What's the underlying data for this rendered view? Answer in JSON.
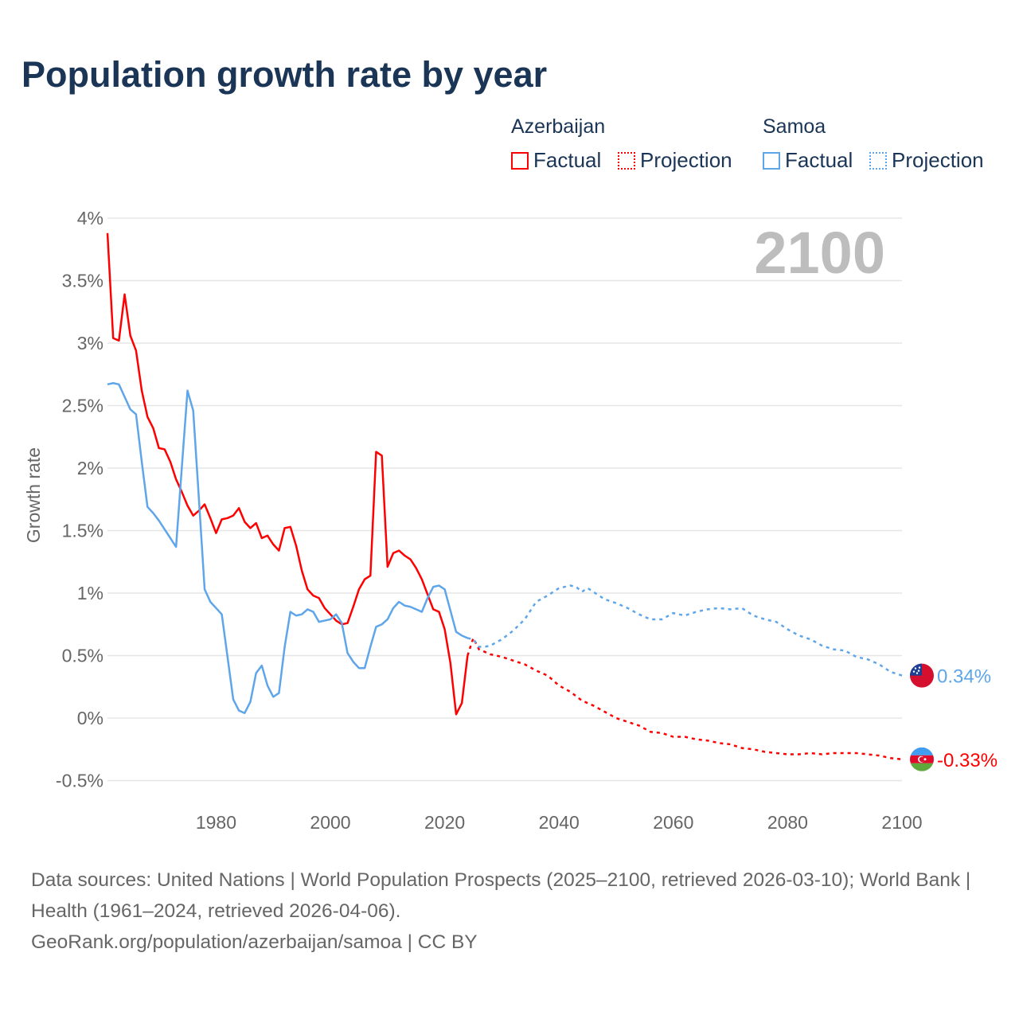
{
  "title": "Population growth rate by year",
  "legend": {
    "groups": [
      {
        "country": "Azerbaijan",
        "factual": "Factual",
        "projection": "Projection",
        "color": "#ff0000"
      },
      {
        "country": "Samoa",
        "factual": "Factual",
        "projection": "Projection",
        "color": "#5ea6e9"
      }
    ]
  },
  "chart_data": {
    "type": "line",
    "title": "Population growth rate by year",
    "xlabel": "",
    "ylabel": "Growth rate",
    "xlim": [
      1961,
      2100
    ],
    "ylim": [
      -0.5,
      4
    ],
    "grid": true,
    "year_watermark": "2100",
    "x_ticks": [
      1980,
      2000,
      2020,
      2040,
      2060,
      2080,
      2100
    ],
    "x_tick_labels": [
      "1980",
      "2000",
      "2020",
      "2040",
      "2060",
      "2080",
      "2100"
    ],
    "y_ticks": [
      -0.5,
      0,
      0.5,
      1,
      1.5,
      2,
      2.5,
      3,
      3.5,
      4
    ],
    "y_tick_labels": [
      "-0.5%",
      "0%",
      "0.5%",
      "1%",
      "1.5%",
      "2%",
      "2.5%",
      "3%",
      "3.5%",
      "4%"
    ],
    "series": [
      {
        "name": "Azerbaijan",
        "color": "#ff0000",
        "end_label": "-0.33%",
        "factual_start_year": 1961,
        "factual": [
          3.88,
          3.04,
          3.02,
          3.39,
          3.06,
          2.94,
          2.62,
          2.41,
          2.32,
          2.16,
          2.15,
          2.05,
          1.91,
          1.81,
          1.7,
          1.62,
          1.66,
          1.71,
          1.6,
          1.48,
          1.59,
          1.6,
          1.62,
          1.68,
          1.57,
          1.52,
          1.56,
          1.44,
          1.46,
          1.39,
          1.34,
          1.52,
          1.53,
          1.38,
          1.18,
          1.03,
          0.98,
          0.96,
          0.88,
          0.83,
          0.78,
          0.75,
          0.76,
          0.89,
          1.03,
          1.11,
          1.14,
          2.13,
          2.1,
          1.21,
          1.32,
          1.34,
          1.3,
          1.27,
          1.2,
          1.11,
          0.99,
          0.87,
          0.85,
          0.71,
          0.44,
          0.03,
          0.12,
          0.5
        ],
        "projection": [
          [
            2024,
            0.5
          ],
          [
            2025,
            0.64
          ],
          [
            2026,
            0.55
          ],
          [
            2028,
            0.51
          ],
          [
            2030,
            0.49
          ],
          [
            2032,
            0.46
          ],
          [
            2034,
            0.43
          ],
          [
            2036,
            0.38
          ],
          [
            2038,
            0.34
          ],
          [
            2040,
            0.26
          ],
          [
            2042,
            0.21
          ],
          [
            2044,
            0.14
          ],
          [
            2046,
            0.1
          ],
          [
            2048,
            0.05
          ],
          [
            2050,
            0.0
          ],
          [
            2052,
            -0.03
          ],
          [
            2054,
            -0.06
          ],
          [
            2056,
            -0.11
          ],
          [
            2058,
            -0.12
          ],
          [
            2060,
            -0.15
          ],
          [
            2062,
            -0.15
          ],
          [
            2064,
            -0.17
          ],
          [
            2066,
            -0.18
          ],
          [
            2068,
            -0.2
          ],
          [
            2070,
            -0.21
          ],
          [
            2072,
            -0.24
          ],
          [
            2074,
            -0.25
          ],
          [
            2076,
            -0.27
          ],
          [
            2078,
            -0.28
          ],
          [
            2080,
            -0.29
          ],
          [
            2082,
            -0.29
          ],
          [
            2084,
            -0.28
          ],
          [
            2086,
            -0.29
          ],
          [
            2088,
            -0.28
          ],
          [
            2090,
            -0.28
          ],
          [
            2092,
            -0.28
          ],
          [
            2094,
            -0.29
          ],
          [
            2096,
            -0.3
          ],
          [
            2098,
            -0.32
          ],
          [
            2100,
            -0.33
          ]
        ]
      },
      {
        "name": "Samoa",
        "color": "#5ea6e9",
        "end_label": "0.34%",
        "factual_start_year": 1961,
        "factual": [
          2.67,
          2.68,
          2.67,
          2.57,
          2.47,
          2.43,
          2.05,
          1.69,
          1.64,
          1.58,
          1.51,
          1.44,
          1.37,
          2.0,
          2.62,
          2.46,
          1.75,
          1.03,
          0.93,
          0.88,
          0.83,
          0.49,
          0.15,
          0.06,
          0.04,
          0.13,
          0.36,
          0.42,
          0.26,
          0.17,
          0.2,
          0.57,
          0.85,
          0.82,
          0.83,
          0.87,
          0.85,
          0.77,
          0.78,
          0.79,
          0.83,
          0.76,
          0.52,
          0.45,
          0.4,
          0.4,
          0.57,
          0.73,
          0.75,
          0.79,
          0.88,
          0.93,
          0.9,
          0.89,
          0.87,
          0.85,
          0.96,
          1.05,
          1.06,
          1.03,
          0.86,
          0.69,
          0.66,
          0.64
        ],
        "projection": [
          [
            2024,
            0.64
          ],
          [
            2025,
            0.63
          ],
          [
            2026,
            0.57
          ],
          [
            2027,
            0.57
          ],
          [
            2028,
            0.58
          ],
          [
            2030,
            0.63
          ],
          [
            2032,
            0.7
          ],
          [
            2034,
            0.79
          ],
          [
            2036,
            0.93
          ],
          [
            2038,
            0.98
          ],
          [
            2040,
            1.04
          ],
          [
            2042,
            1.06
          ],
          [
            2043,
            1.05
          ],
          [
            2044,
            1.01
          ],
          [
            2045,
            1.04
          ],
          [
            2048,
            0.95
          ],
          [
            2050,
            0.92
          ],
          [
            2052,
            0.88
          ],
          [
            2054,
            0.83
          ],
          [
            2056,
            0.79
          ],
          [
            2058,
            0.79
          ],
          [
            2060,
            0.84
          ],
          [
            2062,
            0.82
          ],
          [
            2064,
            0.85
          ],
          [
            2066,
            0.87
          ],
          [
            2068,
            0.88
          ],
          [
            2070,
            0.87
          ],
          [
            2072,
            0.88
          ],
          [
            2074,
            0.82
          ],
          [
            2076,
            0.79
          ],
          [
            2078,
            0.77
          ],
          [
            2080,
            0.71
          ],
          [
            2082,
            0.66
          ],
          [
            2084,
            0.63
          ],
          [
            2086,
            0.58
          ],
          [
            2088,
            0.55
          ],
          [
            2090,
            0.54
          ],
          [
            2092,
            0.49
          ],
          [
            2094,
            0.47
          ],
          [
            2096,
            0.43
          ],
          [
            2098,
            0.37
          ],
          [
            2100,
            0.34
          ]
        ]
      }
    ]
  },
  "footer": {
    "sources": "Data sources: United Nations | World Population Prospects (2025–2100, retrieved 2026-03-10); World Bank | Health (1961–2024, retrieved 2026-04-06).",
    "attribution": "GeoRank.org/population/azerbaijan/samoa | CC BY"
  }
}
